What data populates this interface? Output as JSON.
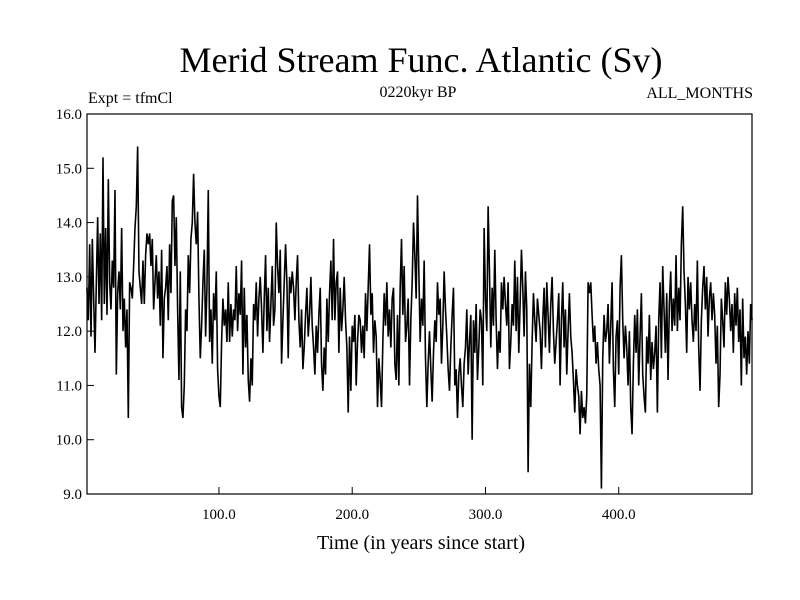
{
  "chart_data": {
    "type": "line",
    "title": "Merid Stream Func. Atlantic (Sv)",
    "subtitle": "0220kyr BP",
    "left_label": "Expt = tfmCl",
    "right_label": "ALL_MONTHS",
    "xlabel": "Time (in years since start)",
    "ylabel": "",
    "xlim": [
      1,
      500
    ],
    "ylim": [
      9.0,
      16.0
    ],
    "xticks": [
      100,
      200,
      300,
      400
    ],
    "xtick_labels": [
      "100.0",
      "200.0",
      "300.0",
      "400.0"
    ],
    "yticks": [
      9,
      10,
      11,
      12,
      13,
      14,
      15,
      16
    ],
    "ytick_labels": [
      "9.0",
      "10.0",
      "11.0",
      "12.0",
      "13.0",
      "14.0",
      "15.0",
      "16.0"
    ],
    "grid": false,
    "line_color": "#000000",
    "series": [
      {
        "x_start": 1,
        "x_step": 1,
        "values": [
          12.8,
          12.2,
          13.6,
          11.9,
          13.7,
          12.6,
          11.6,
          12.9,
          14.1,
          12.5,
          13.8,
          12.2,
          15.2,
          12.5,
          13.9,
          12.3,
          14.8,
          12.9,
          12.4,
          13.3,
          12.8,
          14.6,
          11.2,
          12.7,
          13.1,
          12.4,
          13.9,
          12.0,
          12.6,
          11.7,
          12.4,
          10.4,
          12.9,
          12.8,
          12.6,
          13.2,
          13.9,
          14.3,
          15.4,
          13.1,
          12.8,
          12.5,
          13.3,
          12.5,
          13.4,
          13.8,
          13.6,
          13.8,
          13.2,
          13.7,
          12.4,
          12.9,
          13.4,
          12.6,
          13.1,
          12.1,
          13.5,
          11.5,
          12.6,
          12.8,
          13.2,
          12.2,
          13.6,
          12.7,
          14.4,
          14.5,
          13.2,
          14.1,
          12.4,
          11.1,
          13.1,
          10.6,
          10.4,
          11.0,
          12.4,
          12.0,
          13.4,
          12.7,
          13.7,
          14.0,
          14.9,
          14.0,
          13.6,
          14.2,
          12.6,
          11.5,
          12.1,
          12.9,
          13.5,
          11.9,
          12.8,
          14.6,
          11.8,
          12.4,
          11.4,
          12.7,
          12.2,
          13.1,
          11.3,
          10.8,
          10.6,
          11.8,
          12.6,
          12.1,
          12.4,
          11.8,
          12.9,
          11.8,
          12.5,
          11.9,
          12.4,
          12.2,
          13.2,
          12.0,
          12.7,
          12.3,
          13.3,
          11.2,
          12.8,
          11.7,
          12.3,
          11.1,
          10.7,
          11.5,
          11.0,
          12.5,
          12.2,
          12.9,
          11.9,
          12.6,
          13.0,
          12.4,
          11.6,
          12.6,
          13.4,
          12.0,
          12.8,
          11.8,
          12.5,
          13.2,
          12.1,
          12.4,
          14.0,
          13.2,
          12.7,
          13.5,
          11.4,
          12.2,
          12.9,
          13.6,
          12.9,
          11.5,
          13.0,
          12.7,
          13.1,
          12.8,
          12.2,
          12.9,
          13.4,
          12.2,
          11.7,
          12.4,
          11.3,
          11.7,
          12.3,
          12.8,
          11.9,
          12.3,
          13.0,
          12.1,
          11.7,
          11.2,
          12.1,
          11.6,
          12.3,
          12.8,
          11.4,
          10.9,
          11.7,
          11.2,
          12.6,
          11.8,
          12.7,
          13.3,
          12.2,
          13.7,
          12.2,
          12.9,
          13.1,
          11.6,
          12.8,
          12.0,
          12.4,
          13.0,
          12.2,
          11.7,
          10.5,
          11.9,
          10.9,
          12.1,
          11.8,
          12.3,
          11.0,
          11.8,
          12.3,
          12.2,
          11.6,
          12.1,
          11.5,
          12.7,
          12.0,
          12.8,
          13.6,
          12.3,
          12.7,
          11.6,
          12.2,
          11.9,
          10.6,
          11.5,
          11.1,
          10.6,
          11.8,
          12.7,
          12.1,
          12.9,
          11.9,
          12.4,
          11.7,
          12.6,
          12.8,
          11.4,
          11.1,
          12.3,
          11.0,
          12.8,
          13.7,
          12.3,
          13.2,
          11.8,
          12.1,
          12.6,
          11.0,
          12.2,
          12.9,
          14.0,
          13.4,
          12.6,
          14.5,
          13.1,
          11.8,
          12.6,
          12.1,
          13.3,
          11.5,
          10.6,
          11.4,
          12.0,
          11.3,
          10.7,
          11.6,
          12.2,
          11.8,
          12.9,
          12.3,
          12.6,
          11.4,
          12.1,
          13.1,
          12.4,
          11.9,
          11.3,
          10.9,
          11.7,
          12.3,
          12.8,
          11.0,
          11.3,
          10.4,
          11.2,
          11.5,
          11.0,
          10.6,
          11.4,
          11.7,
          12.4,
          11.2,
          11.8,
          12.3,
          10.0,
          12.2,
          11.6,
          12.5,
          11.1,
          11.7,
          12.4,
          12.2,
          11.0,
          13.9,
          12.6,
          12.0,
          14.3,
          13.1,
          11.7,
          12.8,
          12.1,
          13.5,
          12.2,
          11.3,
          12.0,
          11.6,
          12.9,
          12.4,
          13.0,
          12.5,
          12.1,
          12.9,
          11.3,
          11.8,
          12.5,
          12.1,
          13.3,
          12.0,
          13.0,
          11.6,
          12.5,
          13.5,
          12.8,
          11.9,
          13.1,
          12.4,
          9.4,
          11.4,
          10.6,
          11.8,
          12.7,
          12.2,
          11.8,
          12.6,
          12.3,
          12.0,
          11.3,
          12.2,
          12.8,
          11.7,
          12.9,
          12.3,
          11.6,
          12.5,
          13.0,
          12.0,
          11.4,
          11.8,
          12.2,
          12.7,
          11.0,
          12.2,
          12.9,
          11.7,
          12.4,
          11.2,
          12.0,
          12.7,
          11.9,
          11.6,
          11.1,
          10.5,
          11.3,
          11.0,
          10.8,
          10.1,
          10.9,
          10.4,
          10.6,
          10.3,
          10.8,
          12.9,
          12.7,
          12.9,
          12.3,
          11.8,
          12.1,
          11.4,
          11.8,
          11.3,
          11.0,
          9.1,
          11.5,
          12.3,
          11.8,
          12.0,
          12.5,
          11.4,
          12.1,
          12.9,
          11.3,
          10.6,
          11.9,
          12.2,
          11.2,
          12.8,
          13.4,
          12.2,
          11.5,
          12.1,
          11.7,
          11.0,
          12.0,
          10.6,
          10.1,
          11.4,
          12.3,
          11.6,
          12.4,
          11.0,
          11.9,
          12.7,
          11.2,
          10.8,
          10.5,
          11.9,
          11.4,
          12.3,
          11.1,
          11.8,
          11.3,
          11.6,
          12.1,
          10.5,
          12.2,
          12.9,
          11.5,
          13.2,
          12.4,
          11.6,
          12.7,
          11.1,
          12.5,
          13.1,
          12.0,
          12.6,
          12.1,
          13.4,
          12.0,
          12.8,
          12.2,
          13.6,
          14.3,
          13.1,
          12.5,
          11.6,
          13.0,
          12.4,
          12.9,
          12.2,
          11.8,
          12.5,
          12.0,
          13.3,
          11.7,
          10.9,
          12.2,
          12.8,
          13.2,
          12.4,
          13.0,
          11.9,
          12.6,
          12.9,
          12.2,
          12.7,
          12.3,
          11.4,
          12.1,
          10.6,
          11.2,
          12.6,
          12.2,
          11.7,
          12.9,
          12.3,
          13.0,
          12.6,
          12.0,
          12.5,
          11.6,
          12.7,
          12.1,
          12.8,
          11.8,
          12.4,
          11.0,
          12.6,
          11.5,
          11.9,
          11.2,
          12.0,
          11.4,
          12.5,
          12.2
        ]
      }
    ]
  }
}
